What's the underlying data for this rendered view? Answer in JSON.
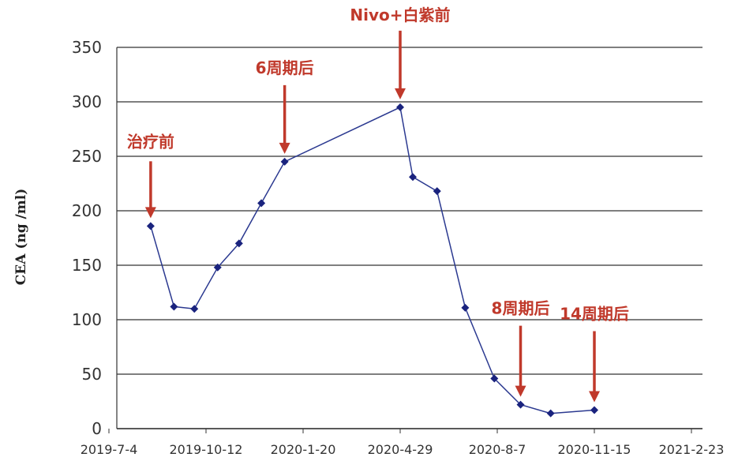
{
  "chart_data": {
    "type": "line",
    "title": "",
    "xlabel": "",
    "ylabel": "CEA (ng /ml)",
    "ylim": [
      0,
      350
    ],
    "y_ticks": [
      0,
      50,
      100,
      150,
      200,
      250,
      300,
      350
    ],
    "x_tick_labels": [
      "2019-7-4",
      "2019-10-12",
      "2020-1-20",
      "2020-4-29",
      "2020-8-7",
      "2020-11-15",
      "2021-2-23"
    ],
    "x_range": [
      "2019-7-4",
      "2021-2-23"
    ],
    "grid": "horizontal",
    "colors": {
      "line": "#2b3990",
      "marker": "#1a237e",
      "annotation": "#c0392b",
      "grid": "#555555"
    },
    "series": [
      {
        "points": [
          {
            "x": "2019-8-16",
            "y": 186
          },
          {
            "x": "2019-9-9",
            "y": 112
          },
          {
            "x": "2019-9-30",
            "y": 110
          },
          {
            "x": "2019-10-24",
            "y": 148
          },
          {
            "x": "2019-11-15",
            "y": 170
          },
          {
            "x": "2019-12-8",
            "y": 207
          },
          {
            "x": "2020-1-1",
            "y": 245
          },
          {
            "x": "2020-4-29",
            "y": 295
          },
          {
            "x": "2020-5-12",
            "y": 231
          },
          {
            "x": "2020-6-6",
            "y": 218
          },
          {
            "x": "2020-7-5",
            "y": 111
          },
          {
            "x": "2020-8-4",
            "y": 46
          },
          {
            "x": "2020-8-31",
            "y": 22
          },
          {
            "x": "2020-10-1",
            "y": 14
          },
          {
            "x": "2020-11-15",
            "y": 17
          }
        ]
      }
    ],
    "annotations": [
      {
        "text": "治疗前",
        "x": "2019-8-16",
        "y": 186
      },
      {
        "text": "6周期后",
        "x": "2020-1-1",
        "y": 245
      },
      {
        "text": "Nivo+白紫前",
        "x": "2020-4-29",
        "y": 295
      },
      {
        "text": "8周期后",
        "x": "2020-8-31",
        "y": 22
      },
      {
        "text": "14周期后",
        "x": "2020-11-15",
        "y": 17
      }
    ]
  }
}
